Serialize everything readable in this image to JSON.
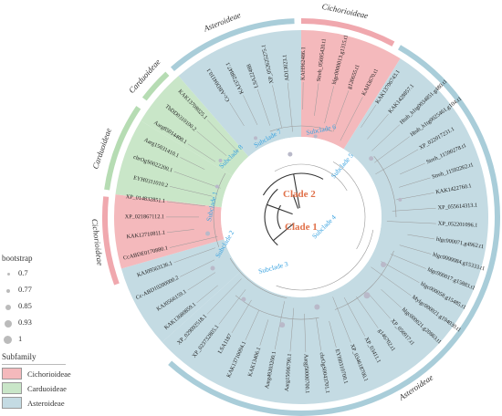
{
  "ring_labels": {
    "asteroideae_top": "Asteroideae",
    "cichorioideae_top": "Cichorioideae",
    "carduoideae_upper": "Carduoideae",
    "carduoideae_lower": "Carduoideae",
    "cichorioideae_left": "Cichorioideae",
    "asteroideae_right": "Asteroideae"
  },
  "clades": [
    "Clade 2",
    "Clade 1"
  ],
  "subclades": [
    "Subclade 6",
    "Subclade 7",
    "Subclade 8",
    "Subclade 5",
    "Subclade 1",
    "Subclade 2",
    "Subclade 3",
    "Subclade 4"
  ],
  "leaves": [
    "Cc‐ABD04110.1",
    "KAJ3728847.1",
    "LSA22488",
    "XP_052625275.1",
    "AD13023.1",
    "KAH962486.1",
    "Streh_05695420.t1",
    "hlgc0000013.g1315.t1",
    "g120655.t1",
    "KAH3670.t1",
    "KAK13706743.1",
    "KAK1428857.1",
    "Htub_h1tg0034851.g480.t1",
    "Htub_h1tg0025461.g104.t1",
    "XP_022017231.1",
    "Streh_11590278.t1",
    "Streh_11592262.t1",
    "KAK1422760.1",
    "XP_055614313.1",
    "XP_052201096.1",
    "hlgc000071.g4962.t1",
    "hlgc0000084.g15333.t1",
    "hlgc000017.g15883.t1",
    "hlgc000058.g15485.t1",
    "Mylgc000021.g194030.t1",
    "hlgc000021.g20863.t1",
    "XP_056917.t1",
    "g146702.t1",
    "XP_03411.1",
    "XP_034618700.1",
    "EYH0310700.1",
    "chrOgS0043701.1",
    "Aargj50000700.1",
    "Aarg15006790.1",
    "Aarg49203200.1",
    "KAK13406.1",
    "KAK13710094.1",
    "LSA1187",
    "XP_023732805.1",
    "XP_029092518.1",
    "KAK13680859.1",
    "KAJ0566159.1",
    "Cc‐ABD10200000.2",
    "KAJ09563136.1",
    "CcABDE0170880.1",
    "KAK12710811.1",
    "XP_021867112.1",
    "XP_014832851.1",
    "EYH0311010.2",
    "chrOgS0022200.1",
    "Aarg15031410.1",
    "Aarg85014400.1",
    "TbDD0310100.2",
    "KAK13708025.1"
  ],
  "legend": {
    "bootstrap_title": "bootstrap",
    "bootstrap_values": [
      "0.7",
      "0.77",
      "0.85",
      "0.93",
      "1"
    ],
    "subfamily_title": "Subfamily",
    "subfamilies": [
      {
        "name": "Cichorioideae",
        "color": "#f4b9bc"
      },
      {
        "name": "Carduoideae",
        "color": "#c9e6c8"
      },
      {
        "name": "Asteroideae",
        "color": "#c4dbe3"
      }
    ]
  },
  "colors": {
    "cichorioideae": "#f4b9bc",
    "carduoideae": "#c9e6c8",
    "asteroideae": "#c4dbe3",
    "ring_asteroideae": "#a9cdd9",
    "ring_cichorioideae": "#f0a8ae",
    "ring_carduoideae": "#b6dcb3",
    "clade_color": "#e0714a",
    "subclade_color": "#3aa3e0",
    "branch_gray": "#999999",
    "branch_dark": "#333333"
  }
}
